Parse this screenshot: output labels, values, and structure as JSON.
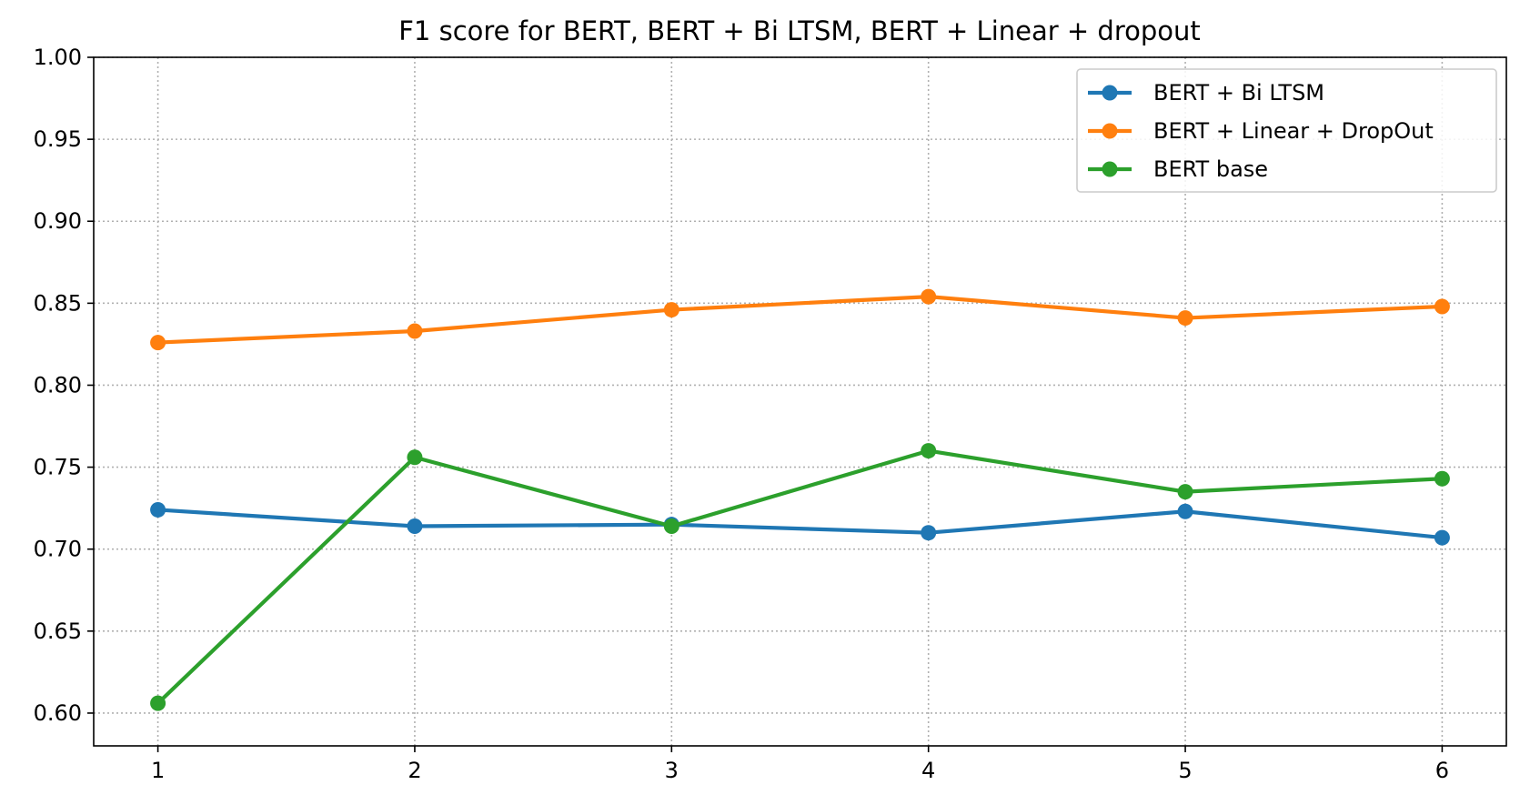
{
  "chart_data": {
    "type": "line",
    "title": "F1 score for BERT, BERT + Bi LTSM, BERT + Linear + dropout",
    "xlabel": "",
    "ylabel": "",
    "x": [
      1,
      2,
      3,
      4,
      5,
      6
    ],
    "x_ticks": [
      "1",
      "2",
      "3",
      "4",
      "5",
      "6"
    ],
    "y_ticks": [
      "0.60",
      "0.65",
      "0.70",
      "0.75",
      "0.80",
      "0.85",
      "0.90",
      "0.95",
      "1.00"
    ],
    "ylim": [
      0.58,
      1.0
    ],
    "xlim": [
      0.75,
      6.25
    ],
    "grid": true,
    "legend_position": "top-right",
    "series": [
      {
        "name": "BERT + Bi LTSM",
        "color": "#1f77b4",
        "values": [
          0.724,
          0.714,
          0.715,
          0.71,
          0.723,
          0.707
        ]
      },
      {
        "name": "BERT + Linear + DropOut",
        "color": "#ff7f0e",
        "values": [
          0.826,
          0.833,
          0.846,
          0.854,
          0.841,
          0.848
        ]
      },
      {
        "name": "BERT base",
        "color": "#2ca02c",
        "values": [
          0.606,
          0.756,
          0.714,
          0.76,
          0.735,
          0.743
        ]
      }
    ]
  }
}
